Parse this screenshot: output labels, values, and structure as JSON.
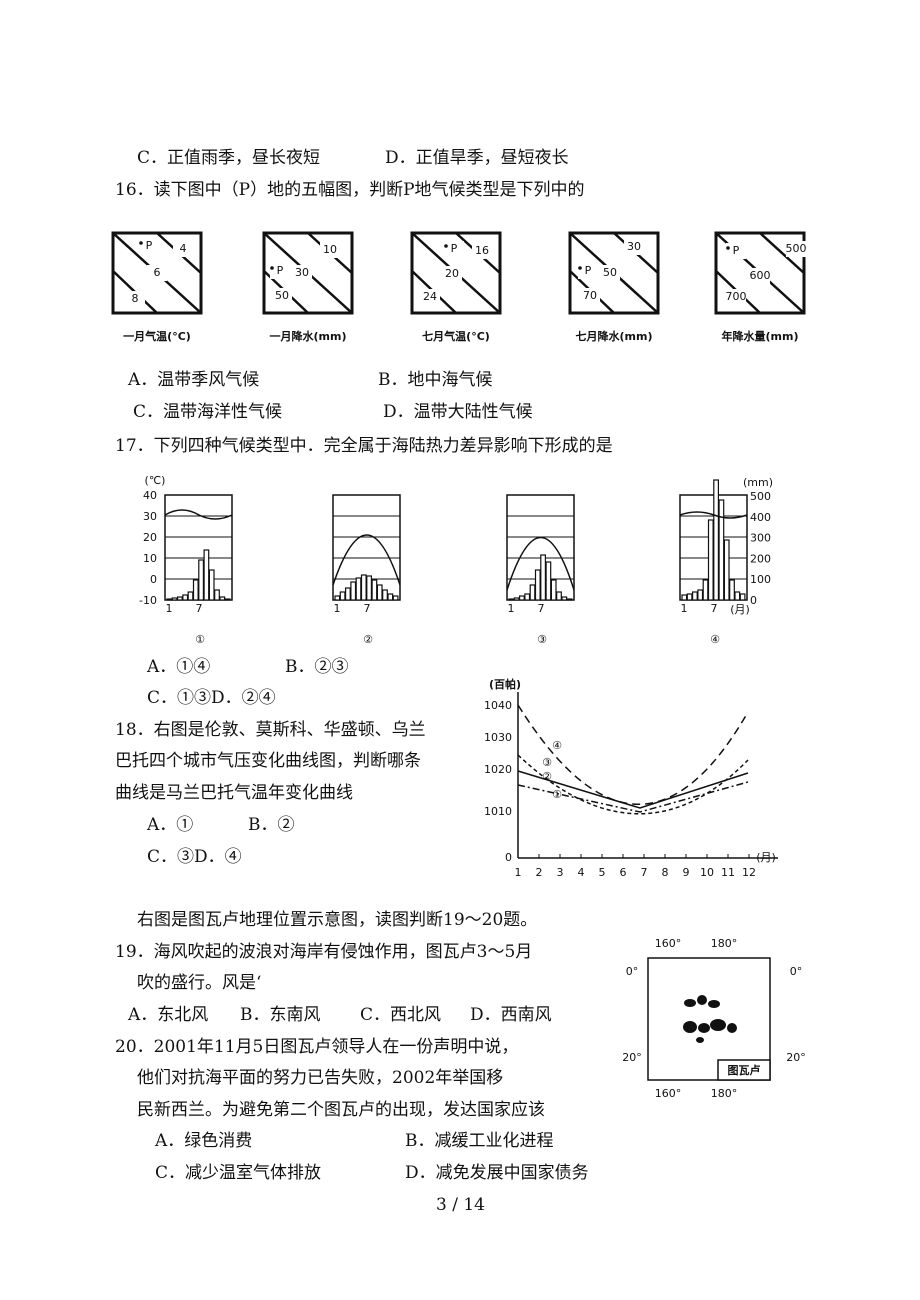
{
  "text_lines": [
    "C．正值雨季，昼长夜短",
    "D．正值旱季，昼短夜长",
    "16．读下图中（P）地的五幅图，判断P地气候类型是下列中的",
    "A．温带季风气候",
    "B．地中海气候",
    "C．温带海洋性气候",
    "D．温带大陆性气候",
    "17．下列四种气候类型中．完全属于海陆热力差异影响下形成的是",
    "A．①④",
    "B．②③",
    "C．①③D．②④",
    "18．右图是伦敦、莫斯科、华盛顿、乌兰",
    "巴托四个城市气压变化曲线图，判断哪条",
    "曲线是马兰巴托气温年变化曲线",
    "A．①",
    "B．②",
    "C．③D．④",
    "右图是图瓦卢地理位置示意图，读图判断19～20题。",
    "19．海风吹起的波浪对海岸有侵蚀作用，图瓦卢3～5月",
    "吹的盛行。风是‘",
    "A．东北风",
    "B．东南风",
    "C．西北风",
    "D．西南风",
    "20．2001年11月5日图瓦卢领导人在一份声明中说，",
    "他们对抗海平面的努力已告失败，2002年举国移",
    "民新西兰。为避免第二个图瓦卢的出现，发达国家应该",
    "A．绿色消费",
    "B．减缓工业化进程",
    "C．减少温室气体排放",
    "D．减免发展中国家债务"
  ],
  "fig16": {
    "panels": [
      {
        "labels": [
          "P",
          "4",
          "6",
          "8"
        ],
        "caption": "一月气温(°C)"
      },
      {
        "labels": [
          "10",
          "P",
          "30",
          "50"
        ],
        "caption": "一月降水(mm)"
      },
      {
        "labels": [
          "P",
          "16",
          "20",
          "24"
        ],
        "caption": "七月气温(°C)"
      },
      {
        "labels": [
          "30",
          "P",
          "50",
          "70"
        ],
        "caption": "七月降水(mm)"
      },
      {
        "labels": [
          "P",
          "500",
          "600",
          "700"
        ],
        "caption": "年降水量(mm)"
      }
    ]
  },
  "fig17": {
    "left_unit": "(℃)",
    "left_ticks": [
      "40",
      "30",
      "20",
      "10",
      "0",
      "-10"
    ],
    "right_unit": "(mm)",
    "right_ticks": [
      "500",
      "400",
      "300",
      "200",
      "100",
      "0"
    ],
    "x_labels": [
      "1",
      "7"
    ],
    "month_unit": "(月)",
    "captions": [
      "①",
      "②",
      "③",
      "④"
    ]
  },
  "fig18": {
    "unit": "(百帕)",
    "yticks": [
      "1040",
      "1030",
      "1020",
      "1010",
      "0"
    ],
    "xticks": [
      "1",
      "2",
      "3",
      "4",
      "5",
      "6",
      "7",
      "8",
      "9",
      "10",
      "11",
      "12"
    ],
    "x_unit": "(月)",
    "curve_labels": [
      "④",
      "③",
      "②",
      "①"
    ]
  },
  "fig19": {
    "top": [
      "160°",
      "180°"
    ],
    "bottom": [
      "160°",
      "180°"
    ],
    "left": [
      "0°",
      "20°"
    ],
    "right": [
      "0°",
      "20°"
    ],
    "label": "图瓦卢"
  },
  "page_number": "3 / 14"
}
